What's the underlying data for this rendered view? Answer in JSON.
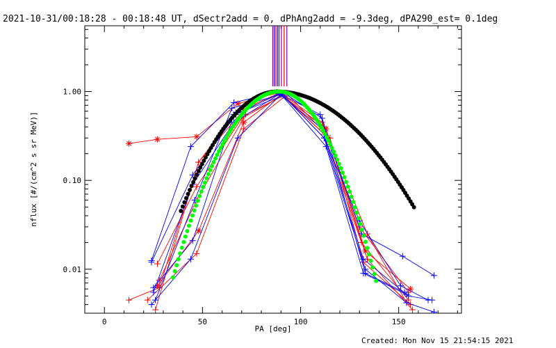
{
  "chart_data": {
    "type": "line",
    "title": "2021-10-31/00:18:28 - 00:18:48 UT, dSectr2add = 0, dPhAng2add = -9.3deg, dPA290_est=  0.1deg",
    "xlabel": "PA [deg]",
    "ylabel": "nflux [#/(cm^2 s sr MeV)]",
    "x_scale": "linear",
    "y_scale": "log",
    "xlim": [
      -10,
      182
    ],
    "ylim": [
      0.0032,
      5.5
    ],
    "x_ticks": [
      0,
      50,
      100,
      150
    ],
    "x_tick_labels": [
      "0",
      "50",
      "100",
      "150"
    ],
    "y_ticks": [
      0.01,
      0.1,
      1.0
    ],
    "y_tick_labels": [
      "0.01",
      "0.10",
      "1.00"
    ],
    "grid": false,
    "footer": "Created: Mon Nov 15 21:54:15 2021",
    "colors": {
      "red": "#ff0000",
      "blue": "#0000ff",
      "black": "#000000",
      "green": "#00ff00",
      "purple": "#8000a0"
    },
    "vertical_markers": [
      {
        "x": 85.8,
        "color": "#8000a0"
      },
      {
        "x": 86.6,
        "color": "#0000ff"
      },
      {
        "x": 87.4,
        "color": "#ff0000"
      },
      {
        "x": 88.2,
        "color": "#0000ff"
      },
      {
        "x": 89.0,
        "color": "#0000ff"
      },
      {
        "x": 90.2,
        "color": "#8000a0"
      },
      {
        "x": 91.6,
        "color": "#ff0000"
      },
      {
        "x": 93.0,
        "color": "#8000a0"
      }
    ],
    "series": [
      {
        "color": "#ff0000",
        "marker": "asterisk",
        "points": [
          [
            12.5,
            0.26
          ],
          [
            27,
            0.29
          ],
          [
            47,
            0.31
          ],
          [
            68,
            0.73
          ],
          [
            88,
            0.96
          ]
        ]
      },
      {
        "color": "#ff0000",
        "marker": "plus",
        "points": [
          [
            12.5,
            0.0045
          ],
          [
            28,
            0.0062
          ],
          [
            48,
            0.16
          ],
          [
            71,
            0.62
          ],
          [
            90,
            0.95
          ],
          [
            111,
            0.45
          ],
          [
            130,
            0.03
          ],
          [
            155,
            0.0055
          ]
        ]
      },
      {
        "color": "#ff0000",
        "marker": "plus",
        "points": [
          [
            27,
            0.0115
          ],
          [
            47,
            0.085
          ],
          [
            70,
            0.5
          ],
          [
            91,
            0.9
          ],
          [
            112,
            0.33
          ],
          [
            131,
            0.02
          ],
          [
            155,
            0.0045
          ]
        ]
      },
      {
        "color": "#ff0000",
        "marker": "asterisk",
        "points": [
          [
            27,
            0.0065
          ],
          [
            48,
            0.027
          ],
          [
            71,
            0.45
          ],
          [
            90,
            0.92
          ],
          [
            113,
            0.38
          ],
          [
            133,
            0.016
          ],
          [
            156,
            0.006
          ]
        ]
      },
      {
        "color": "#ff0000",
        "marker": "plus",
        "points": [
          [
            22,
            0.0045
          ],
          [
            47,
            0.015
          ],
          [
            71,
            0.38
          ],
          [
            92,
            0.88
          ],
          [
            114,
            0.3
          ],
          [
            134,
            0.013
          ],
          [
            157,
            0.0035
          ]
        ]
      },
      {
        "color": "#ff0000",
        "marker": "plus",
        "points": [
          [
            26,
            0.0035
          ],
          [
            48,
            0.16
          ],
          [
            67,
            0.58
          ],
          [
            89,
            0.96
          ],
          [
            112,
            0.4
          ],
          [
            134,
            0.025
          ],
          [
            154,
            0.0042
          ]
        ]
      },
      {
        "color": "#ff0000",
        "marker": "plus",
        "points": [
          [
            28,
            0.0075
          ],
          [
            47,
            0.06
          ],
          [
            72,
            0.55
          ],
          [
            93,
            0.94
          ],
          [
            115,
            0.3
          ],
          [
            132,
            0.012
          ],
          [
            156,
            0.004
          ]
        ]
      },
      {
        "color": "#0000ff",
        "marker": "plus",
        "points": [
          [
            24,
            0.0125
          ],
          [
            44,
            0.24
          ],
          [
            66,
            0.75
          ],
          [
            88,
            0.98
          ],
          [
            110,
            0.55
          ],
          [
            131,
            0.025
          ],
          [
            152,
            0.014
          ],
          [
            168,
            0.0085
          ]
        ]
      },
      {
        "color": "#0000ff",
        "marker": "plus",
        "points": [
          [
            24,
            0.012
          ],
          [
            45,
            0.115
          ],
          [
            67,
            0.55
          ],
          [
            89,
            0.95
          ],
          [
            111,
            0.38
          ],
          [
            132,
            0.013
          ],
          [
            155,
            0.005
          ],
          [
            167,
            0.0045
          ]
        ]
      },
      {
        "color": "#0000ff",
        "marker": "plus",
        "points": [
          [
            25,
            0.0055
          ],
          [
            45,
            0.09
          ],
          [
            66,
            0.45
          ],
          [
            90,
            0.96
          ],
          [
            112,
            0.3
          ],
          [
            133,
            0.01
          ],
          [
            154,
            0.0042
          ],
          [
            168,
            0.0033
          ]
        ]
      },
      {
        "color": "#0000ff",
        "marker": "plus",
        "points": [
          [
            24,
            0.004
          ],
          [
            44,
            0.013
          ],
          [
            68,
            0.3
          ],
          [
            90,
            0.93
          ],
          [
            113,
            0.24
          ],
          [
            132,
            0.009
          ],
          [
            154,
            0.0052
          ]
        ]
      },
      {
        "color": "#0000ff",
        "marker": "plus",
        "points": [
          [
            25,
            0.0062
          ],
          [
            45,
            0.021
          ],
          [
            66,
            0.55
          ],
          [
            91,
            0.9
          ],
          [
            112,
            0.3
          ],
          [
            130,
            0.035
          ],
          [
            151,
            0.0065
          ],
          [
            165,
            0.0045
          ]
        ]
      },
      {
        "color": "#0000ff",
        "marker": "plus",
        "points": [
          [
            26,
            0.0045
          ],
          [
            46,
            0.06
          ],
          [
            65,
            0.65
          ],
          [
            92,
            0.95
          ],
          [
            111,
            0.5
          ],
          [
            133,
            0.009
          ],
          [
            153,
            0.0055
          ]
        ]
      }
    ],
    "fits": [
      {
        "color": "#000000",
        "marker": "dot",
        "x_range": [
          39,
          158
        ],
        "center": 88,
        "sigma_left": 19.7,
        "sigma_right": 28.5
      },
      {
        "color": "#00ff00",
        "marker": "dot",
        "x_range": [
          35,
          139
        ],
        "center": 89,
        "sigma_left": 17.4,
        "sigma_right": 15.8
      }
    ]
  }
}
